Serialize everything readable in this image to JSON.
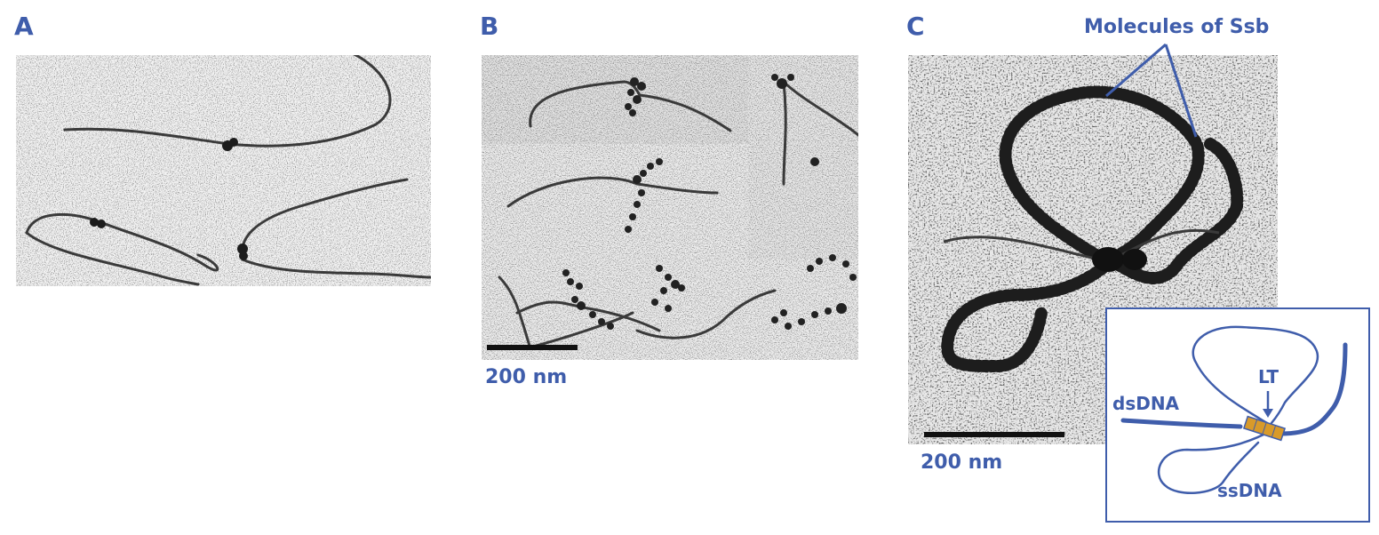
{
  "panels": [
    {
      "label": "A"
    },
    {
      "label": "B",
      "scale_bar": "200 nm"
    },
    {
      "label": "C",
      "scale_bar": "200 nm",
      "callout": "Molecules of Ssb"
    }
  ],
  "diagram": {
    "dsDNA": "dsDNA",
    "ssDNA": "ssDNA",
    "LT": "LT"
  },
  "colors": {
    "label_blue": "#3f5dab",
    "helicase": "#d89a2a",
    "background": "#ffffff"
  }
}
